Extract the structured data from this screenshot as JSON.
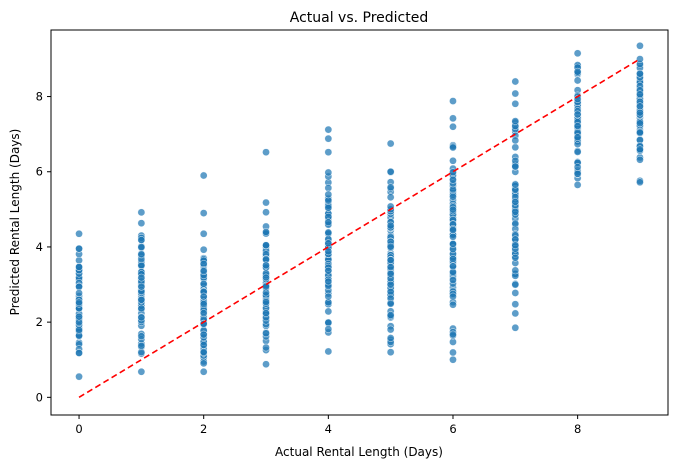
{
  "chart_data": {
    "type": "scatter",
    "title": "Actual vs. Predicted",
    "xlabel": "Actual Rental Length (Days)",
    "ylabel": "Predicted Rental Length (Days)",
    "xlim": [
      -0.45,
      9.45
    ],
    "ylim": [
      -0.47,
      9.77
    ],
    "xticks": [
      0,
      2,
      4,
      6,
      8
    ],
    "yticks": [
      0,
      2,
      4,
      6,
      8
    ],
    "grid": false,
    "colors": {
      "points": "#1f77b4",
      "reference_line": "#ff0000"
    },
    "reference_line": {
      "style": "dashed",
      "from": [
        0,
        0
      ],
      "to": [
        9,
        9
      ]
    },
    "point_columns": [
      {
        "x": 0,
        "min": 0.55,
        "max": 4.35,
        "n": 60
      },
      {
        "x": 1,
        "min": 0.68,
        "max": 4.92,
        "n": 70
      },
      {
        "x": 2,
        "min": 0.68,
        "max": 4.35,
        "n": 70,
        "outliers": [
          4.9,
          5.9
        ]
      },
      {
        "x": 3,
        "min": 0.88,
        "max": 5.18,
        "n": 70,
        "outliers": [
          6.52
        ]
      },
      {
        "x": 4,
        "min": 1.22,
        "max": 5.98,
        "n": 80,
        "outliers": [
          6.52,
          6.88,
          7.12
        ]
      },
      {
        "x": 5,
        "min": 1.2,
        "max": 6.75,
        "n": 90
      },
      {
        "x": 6,
        "min": 1.0,
        "max": 7.42,
        "n": 90,
        "outliers": [
          7.88
        ]
      },
      {
        "x": 7,
        "min": 1.85,
        "max": 8.08,
        "n": 80,
        "outliers": [
          8.4
        ]
      },
      {
        "x": 8,
        "min": 5.65,
        "max": 9.15,
        "n": 70
      },
      {
        "x": 9,
        "min": 5.72,
        "max": 9.35,
        "n": 70
      }
    ]
  }
}
